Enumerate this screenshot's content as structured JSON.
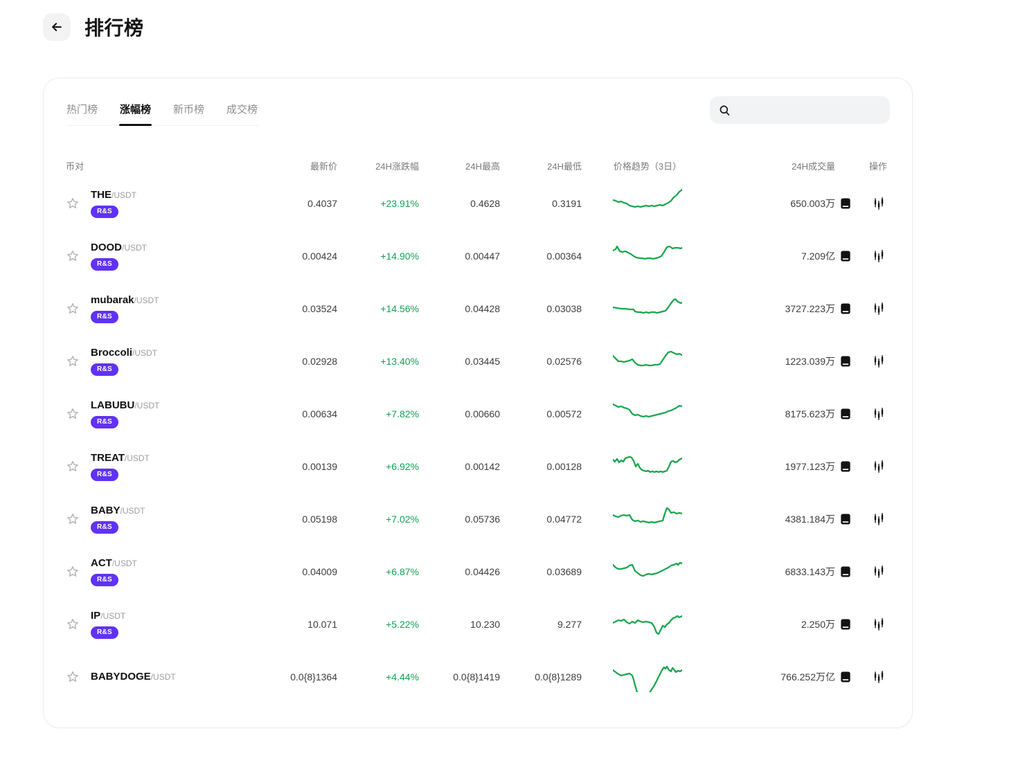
{
  "header": {
    "title": "排行榜"
  },
  "tabs": {
    "items": [
      {
        "label": "热门榜"
      },
      {
        "label": "涨幅榜"
      },
      {
        "label": "新币榜"
      },
      {
        "label": "成交榜"
      }
    ],
    "active": "涨幅榜"
  },
  "search": {
    "placeholder": ""
  },
  "table": {
    "columns": [
      "币对",
      "最新价",
      "24H涨跌幅",
      "24H最高",
      "24H最低",
      "价格趋势（3日）",
      "24H成交量",
      "操作"
    ]
  },
  "colors": {
    "up_green": "#14a054",
    "spark_green": "#1ca64f",
    "badge_purple": "#6032f5"
  },
  "rows": [
    {
      "symbol": "THE",
      "quote": "/USDT",
      "badge": "R&S",
      "price": "0.4037",
      "change": "+23.91%",
      "high": "0.4628",
      "low": "0.3191",
      "volume": "650.003万",
      "spark": [
        [
          0,
          17
        ],
        [
          4,
          18
        ],
        [
          8,
          20
        ],
        [
          12,
          19
        ],
        [
          16,
          21
        ],
        [
          20,
          22
        ],
        [
          24,
          25
        ],
        [
          28,
          26
        ],
        [
          32,
          27
        ],
        [
          36,
          26
        ],
        [
          40,
          27
        ],
        [
          44,
          26
        ],
        [
          48,
          25
        ],
        [
          52,
          26
        ],
        [
          56,
          25
        ],
        [
          60,
          26
        ],
        [
          64,
          25
        ],
        [
          68,
          24
        ],
        [
          72,
          25
        ],
        [
          76,
          23
        ],
        [
          80,
          21
        ],
        [
          84,
          18
        ],
        [
          88,
          13
        ],
        [
          92,
          10
        ],
        [
          96,
          5
        ],
        [
          100,
          2
        ]
      ]
    },
    {
      "symbol": "DOOD",
      "quote": "/USDT",
      "badge": "R&S",
      "price": "0.00424",
      "change": "+14.90%",
      "high": "0.00447",
      "low": "0.00364",
      "volume": "7.209亿",
      "spark": [
        [
          0,
          14
        ],
        [
          4,
          12
        ],
        [
          6,
          8
        ],
        [
          10,
          15
        ],
        [
          14,
          16
        ],
        [
          18,
          15
        ],
        [
          22,
          17
        ],
        [
          26,
          19
        ],
        [
          30,
          22
        ],
        [
          34,
          24
        ],
        [
          38,
          25
        ],
        [
          42,
          25
        ],
        [
          46,
          26
        ],
        [
          50,
          25
        ],
        [
          54,
          25
        ],
        [
          58,
          26
        ],
        [
          62,
          25
        ],
        [
          66,
          24
        ],
        [
          70,
          22
        ],
        [
          74,
          16
        ],
        [
          78,
          9
        ],
        [
          82,
          8
        ],
        [
          86,
          11
        ],
        [
          90,
          10
        ],
        [
          94,
          10
        ],
        [
          98,
          11
        ],
        [
          100,
          10
        ]
      ]
    },
    {
      "symbol": "mubarak",
      "quote": "/USDT",
      "badge": "R&S",
      "price": "0.03524",
      "change": "+14.56%",
      "high": "0.04428",
      "low": "0.03038",
      "volume": "3727.223万",
      "spark": [
        [
          0,
          20
        ],
        [
          6,
          21
        ],
        [
          12,
          22
        ],
        [
          18,
          22
        ],
        [
          24,
          23
        ],
        [
          30,
          23
        ],
        [
          32,
          26
        ],
        [
          36,
          27
        ],
        [
          40,
          27
        ],
        [
          44,
          28
        ],
        [
          48,
          27
        ],
        [
          52,
          28
        ],
        [
          56,
          27
        ],
        [
          60,
          27
        ],
        [
          64,
          28
        ],
        [
          68,
          27
        ],
        [
          72,
          26
        ],
        [
          76,
          25
        ],
        [
          80,
          20
        ],
        [
          84,
          14
        ],
        [
          88,
          9
        ],
        [
          90,
          8
        ],
        [
          94,
          12
        ],
        [
          98,
          14
        ],
        [
          100,
          13
        ]
      ]
    },
    {
      "symbol": "Broccoli",
      "quote": "/USDT",
      "badge": "R&S",
      "price": "0.02928",
      "change": "+13.40%",
      "high": "0.03445",
      "low": "0.02576",
      "volume": "1223.039万",
      "spark": [
        [
          0,
          14
        ],
        [
          4,
          18
        ],
        [
          8,
          22
        ],
        [
          12,
          22
        ],
        [
          16,
          23
        ],
        [
          20,
          22
        ],
        [
          24,
          21
        ],
        [
          28,
          19
        ],
        [
          32,
          24
        ],
        [
          36,
          27
        ],
        [
          40,
          28
        ],
        [
          44,
          28
        ],
        [
          48,
          27
        ],
        [
          52,
          28
        ],
        [
          56,
          28
        ],
        [
          60,
          27
        ],
        [
          64,
          27
        ],
        [
          68,
          26
        ],
        [
          72,
          20
        ],
        [
          76,
          14
        ],
        [
          80,
          9
        ],
        [
          84,
          8
        ],
        [
          88,
          10
        ],
        [
          92,
          12
        ],
        [
          96,
          11
        ],
        [
          100,
          13
        ]
      ]
    },
    {
      "symbol": "LABUBU",
      "quote": "/USDT",
      "badge": "R&S",
      "price": "0.00634",
      "change": "+7.82%",
      "high": "0.00660",
      "low": "0.00572",
      "volume": "8175.623万",
      "spark": [
        [
          0,
          8
        ],
        [
          4,
          10
        ],
        [
          8,
          12
        ],
        [
          12,
          11
        ],
        [
          16,
          13
        ],
        [
          20,
          14
        ],
        [
          24,
          16
        ],
        [
          28,
          22
        ],
        [
          32,
          24
        ],
        [
          36,
          23
        ],
        [
          40,
          25
        ],
        [
          44,
          26
        ],
        [
          48,
          25
        ],
        [
          52,
          26
        ],
        [
          56,
          25
        ],
        [
          60,
          24
        ],
        [
          64,
          23
        ],
        [
          68,
          22
        ],
        [
          72,
          21
        ],
        [
          76,
          20
        ],
        [
          80,
          18
        ],
        [
          84,
          17
        ],
        [
          88,
          15
        ],
        [
          92,
          13
        ],
        [
          96,
          10
        ],
        [
          100,
          11
        ]
      ]
    },
    {
      "symbol": "TREAT",
      "quote": "/USDT",
      "badge": "R&S",
      "price": "0.00139",
      "change": "+6.92%",
      "high": "0.00142",
      "low": "0.00128",
      "volume": "1977.123万",
      "spark": [
        [
          0,
          12
        ],
        [
          3,
          15
        ],
        [
          6,
          11
        ],
        [
          9,
          16
        ],
        [
          12,
          13
        ],
        [
          15,
          15
        ],
        [
          18,
          10
        ],
        [
          21,
          9
        ],
        [
          24,
          8
        ],
        [
          27,
          9
        ],
        [
          30,
          14
        ],
        [
          33,
          22
        ],
        [
          36,
          18
        ],
        [
          39,
          24
        ],
        [
          42,
          27
        ],
        [
          45,
          28
        ],
        [
          48,
          29
        ],
        [
          51,
          28
        ],
        [
          54,
          30
        ],
        [
          57,
          29
        ],
        [
          60,
          30
        ],
        [
          63,
          29
        ],
        [
          66,
          30
        ],
        [
          69,
          29
        ],
        [
          72,
          30
        ],
        [
          75,
          29
        ],
        [
          78,
          28
        ],
        [
          81,
          22
        ],
        [
          84,
          15
        ],
        [
          87,
          14
        ],
        [
          90,
          16
        ],
        [
          93,
          15
        ],
        [
          96,
          12
        ],
        [
          100,
          10
        ]
      ]
    },
    {
      "symbol": "BABY",
      "quote": "/USDT",
      "badge": "R&S",
      "price": "0.05198",
      "change": "+7.02%",
      "high": "0.05736",
      "low": "0.04772",
      "volume": "4381.184万",
      "spark": [
        [
          0,
          16
        ],
        [
          4,
          18
        ],
        [
          8,
          19
        ],
        [
          12,
          17
        ],
        [
          16,
          16
        ],
        [
          20,
          17
        ],
        [
          24,
          16
        ],
        [
          28,
          23
        ],
        [
          32,
          25
        ],
        [
          36,
          24
        ],
        [
          40,
          26
        ],
        [
          44,
          25
        ],
        [
          48,
          26
        ],
        [
          52,
          27
        ],
        [
          56,
          26
        ],
        [
          60,
          27
        ],
        [
          64,
          26
        ],
        [
          68,
          25
        ],
        [
          72,
          24
        ],
        [
          75,
          14
        ],
        [
          78,
          6
        ],
        [
          81,
          8
        ],
        [
          84,
          13
        ],
        [
          88,
          12
        ],
        [
          92,
          14
        ],
        [
          96,
          13
        ],
        [
          100,
          14
        ]
      ]
    },
    {
      "symbol": "ACT",
      "quote": "/USDT",
      "badge": "R&S",
      "price": "0.04009",
      "change": "+6.87%",
      "high": "0.04426",
      "low": "0.03689",
      "volume": "6833.143万",
      "spark": [
        [
          0,
          12
        ],
        [
          4,
          16
        ],
        [
          8,
          18
        ],
        [
          12,
          18
        ],
        [
          16,
          17
        ],
        [
          20,
          16
        ],
        [
          24,
          13
        ],
        [
          28,
          12
        ],
        [
          32,
          21
        ],
        [
          36,
          24
        ],
        [
          40,
          27
        ],
        [
          44,
          28
        ],
        [
          48,
          26
        ],
        [
          52,
          25
        ],
        [
          56,
          26
        ],
        [
          60,
          25
        ],
        [
          64,
          24
        ],
        [
          68,
          22
        ],
        [
          72,
          20
        ],
        [
          76,
          18
        ],
        [
          80,
          16
        ],
        [
          84,
          13
        ],
        [
          88,
          12
        ],
        [
          92,
          10
        ],
        [
          94,
          12
        ],
        [
          97,
          9
        ],
        [
          100,
          10
        ]
      ]
    },
    {
      "symbol": "IP",
      "quote": "/USDT",
      "badge": "R&S",
      "price": "10.071",
      "change": "+5.22%",
      "high": "10.230",
      "low": "9.277",
      "volume": "2.250万",
      "spark": [
        [
          0,
          20
        ],
        [
          4,
          18
        ],
        [
          8,
          16
        ],
        [
          12,
          17
        ],
        [
          16,
          15
        ],
        [
          20,
          19
        ],
        [
          24,
          21
        ],
        [
          28,
          18
        ],
        [
          32,
          20
        ],
        [
          36,
          16
        ],
        [
          40,
          18
        ],
        [
          44,
          19
        ],
        [
          48,
          18
        ],
        [
          52,
          19
        ],
        [
          56,
          20
        ],
        [
          60,
          26
        ],
        [
          63,
          34
        ],
        [
          66,
          36
        ],
        [
          69,
          30
        ],
        [
          72,
          24
        ],
        [
          75,
          26
        ],
        [
          78,
          22
        ],
        [
          81,
          20
        ],
        [
          84,
          16
        ],
        [
          87,
          13
        ],
        [
          90,
          12
        ],
        [
          93,
          10
        ],
        [
          96,
          12
        ],
        [
          100,
          10
        ]
      ]
    },
    {
      "symbol": "BABYDOGE",
      "quote": "/USDT",
      "badge": "",
      "price": "0.0{8}1364",
      "change": "+4.44%",
      "high": "0.0{8}1419",
      "low": "0.0{8}1289",
      "volume": "766.252万亿",
      "spark": [
        [
          0,
          12
        ],
        [
          4,
          15
        ],
        [
          8,
          18
        ],
        [
          12,
          20
        ],
        [
          16,
          19
        ],
        [
          20,
          18
        ],
        [
          24,
          17
        ],
        [
          28,
          20
        ],
        [
          30,
          26
        ],
        [
          32,
          34
        ],
        [
          35,
          44
        ],
        [
          38,
          50
        ],
        [
          42,
          53
        ],
        [
          46,
          53
        ],
        [
          50,
          49
        ],
        [
          53,
          45
        ],
        [
          56,
          40
        ],
        [
          60,
          34
        ],
        [
          64,
          26
        ],
        [
          68,
          18
        ],
        [
          71,
          12
        ],
        [
          74,
          8
        ],
        [
          76,
          10
        ],
        [
          78,
          7
        ],
        [
          81,
          12
        ],
        [
          84,
          14
        ],
        [
          86,
          9
        ],
        [
          88,
          11
        ],
        [
          91,
          15
        ],
        [
          94,
          13
        ],
        [
          97,
          14
        ],
        [
          100,
          12
        ]
      ]
    }
  ]
}
